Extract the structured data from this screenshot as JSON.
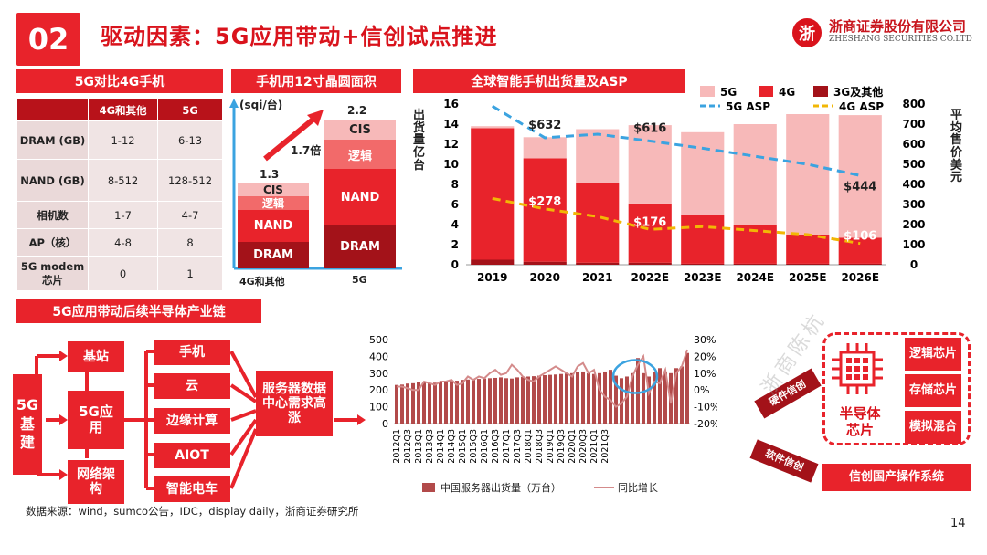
{
  "header": {
    "number": "02",
    "title": "驱动因素：5G应用带动+信创试点推进",
    "company_cn": "浙商证券股份有限公司",
    "company_en": "ZHESHANG SECURITIES CO.LTD",
    "logo_char": "浙"
  },
  "compare": {
    "title": "5G对比4G手机",
    "col1": "4G和其他",
    "col2": "5G",
    "rows": [
      {
        "name": "DRAM (GB)",
        "v4g": "1-12",
        "v5g": "6-13"
      },
      {
        "name": "NAND (GB)",
        "v4g": "8-512",
        "v5g": "128-512"
      },
      {
        "name": "相机数",
        "v4g": "1-7",
        "v5g": "4-7"
      },
      {
        "name": "AP（核）",
        "v4g": "4-8",
        "v5g": "8"
      },
      {
        "name": "5G modem 芯片",
        "v4g": "0",
        "v5g": "1"
      }
    ]
  },
  "wafer": {
    "title": "手机用12寸晶圆面积",
    "unit": "(sqi/台)",
    "ratio": "1.7倍",
    "chart_data": {
      "type": "bar",
      "categories": [
        "4G和其他",
        "5G"
      ],
      "totals": [
        "1.3",
        "2.2"
      ],
      "segments": [
        "DRAM",
        "NAND",
        "逻辑",
        "CIS"
      ]
    }
  },
  "shipments": {
    "title": "全球智能手机出货量及ASP",
    "y_left_label": "出货量亿台",
    "y_right_label": "平均售价美元",
    "chart_data": {
      "type": "bar",
      "categories": [
        "2019",
        "2020",
        "2021",
        "2022E",
        "2023E",
        "2024E",
        "2025E",
        "2026E"
      ],
      "series": [
        {
          "name": "5G",
          "color": "#f7b9b9",
          "values": [
            0.2,
            2.1,
            5.4,
            7.8,
            8.2,
            10.0,
            12.0,
            12.2
          ]
        },
        {
          "name": "4G",
          "color": "#e8232b",
          "values": [
            13.1,
            10.3,
            7.9,
            5.9,
            4.9,
            3.9,
            2.9,
            2.6
          ]
        },
        {
          "name": "3G及其他",
          "color": "#a31219",
          "values": [
            0.5,
            0.3,
            0.2,
            0.2,
            0.1,
            0.1,
            0.1,
            0.1
          ]
        }
      ],
      "lines": [
        {
          "name": "5G ASP",
          "color": "#3ba3e0",
          "values": [
            790,
            632,
            650,
            616,
            580,
            540,
            500,
            444
          ]
        },
        {
          "name": "4G ASP",
          "color": "#f2b705",
          "values": [
            330,
            278,
            240,
            176,
            190,
            170,
            150,
            106
          ]
        }
      ],
      "ylim_left": [
        0,
        16
      ],
      "ylim_right": [
        0,
        800
      ],
      "yticks_left": [
        "0",
        "2",
        "4",
        "6",
        "8",
        "10",
        "12",
        "14",
        "16"
      ],
      "yticks_right": [
        "0",
        "100",
        "200",
        "300",
        "400",
        "500",
        "600",
        "700",
        "800"
      ],
      "labels": [
        "$632",
        "$616",
        "$444",
        "$278",
        "$176",
        "$106"
      ]
    }
  },
  "chain": {
    "title": "5G应用带动后续半导体产业链",
    "left": "5G基建",
    "nodes": [
      "基站",
      "5G应用",
      "网络架构"
    ],
    "apps": [
      "手机",
      "云",
      "边缘计算",
      "AIOT",
      "智能电车"
    ],
    "demand": "服务器数据中心需求高涨"
  },
  "servers": {
    "chart_data": {
      "type": "bar",
      "categories": [
        "2012Q1",
        "2012Q3",
        "2013Q1",
        "2013Q3",
        "2014Q1",
        "2014Q3",
        "2015Q1",
        "2015Q3",
        "2016Q1",
        "2016Q3",
        "2017Q1",
        "2017Q3",
        "2018Q1",
        "2018Q3",
        "2019Q1",
        "2019Q3",
        "2020Q1",
        "2020Q3",
        "2021Q1",
        "2021Q3"
      ],
      "bars": [
        230,
        232,
        238,
        240,
        245,
        246,
        240,
        243,
        250,
        252,
        255,
        255,
        260,
        262,
        265,
        266,
        268,
        270,
        272,
        275,
        270,
        268,
        275,
        278,
        280,
        282,
        285,
        288,
        290,
        292,
        295,
        298,
        300,
        305,
        310,
        300,
        295,
        300,
        310,
        320,
        285,
        270,
        280,
        300,
        390,
        300,
        280,
        310,
        330,
        310,
        300,
        330,
        340,
        420
      ],
      "growth": [
        2,
        2,
        1,
        0,
        0,
        5,
        4,
        3,
        5,
        5,
        6,
        3,
        4,
        8,
        6,
        8,
        7,
        10,
        12,
        9,
        10,
        15,
        12,
        8,
        6,
        5,
        8,
        10,
        12,
        14,
        12,
        10,
        8,
        14,
        16,
        10,
        12,
        0,
        -4,
        -6,
        -10,
        -8,
        -4,
        8,
        15,
        20,
        -2,
        5,
        4,
        12,
        -8,
        10,
        14,
        24
      ],
      "yticks_left": [
        "0",
        "100",
        "200",
        "300",
        "400",
        "500"
      ],
      "yticks_right": [
        "-20%",
        "-10%",
        "0%",
        "10%",
        "20%",
        "30%"
      ],
      "legend_bar": "中国服务器出货量（万台）",
      "legend_line": "同比增长",
      "ylim": [
        0,
        500
      ],
      "ylim_right": [
        -20,
        30
      ]
    }
  },
  "semis": {
    "hard": "硬件信创",
    "soft": "软件信创",
    "center": "半导体芯片",
    "chips": [
      "逻辑芯片",
      "存储芯片",
      "模拟混合"
    ],
    "os": "信创国产操作系统",
    "watermark": "浙商陈杭"
  },
  "footer": {
    "source": "数据来源：wind，sumco公告，IDC，display daily，浙商证券研究所",
    "page": "14"
  }
}
